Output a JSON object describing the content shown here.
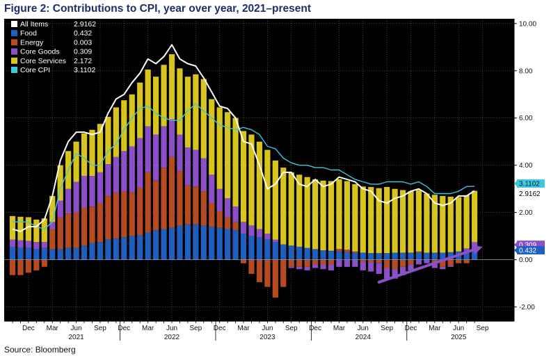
{
  "title": "Figure 2: Contributions to CPI, year over year, 2021–present",
  "source": "Source: Bloomberg",
  "chart_data": {
    "type": "bar",
    "stacked": true,
    "ylim": [
      -2.6,
      10.2
    ],
    "yticks": [
      "10.00",
      "8.00",
      "6.00",
      "4.00",
      "2.00",
      "0.00",
      "-2.00"
    ],
    "ytick_values": [
      10,
      8,
      6,
      4,
      2,
      0,
      -2
    ],
    "x_months": [
      "2020-10",
      "2020-11",
      "2020-12",
      "2021-01",
      "2021-02",
      "2021-03",
      "2021-04",
      "2021-05",
      "2021-06",
      "2021-07",
      "2021-08",
      "2021-09",
      "2021-10",
      "2021-11",
      "2021-12",
      "2022-01",
      "2022-02",
      "2022-03",
      "2022-04",
      "2022-05",
      "2022-06",
      "2022-07",
      "2022-08",
      "2022-09",
      "2022-10",
      "2022-11",
      "2022-12",
      "2023-01",
      "2023-02",
      "2023-03",
      "2023-04",
      "2023-05",
      "2023-06",
      "2023-07",
      "2023-08",
      "2023-09",
      "2023-10",
      "2023-11",
      "2023-12",
      "2024-01",
      "2024-02",
      "2024-03",
      "2024-04",
      "2024-05",
      "2024-06",
      "2024-07",
      "2024-08",
      "2024-09",
      "2024-10",
      "2024-11",
      "2024-12",
      "2025-01",
      "2025-02",
      "2025-03",
      "2025-04",
      "2025-05",
      "2025-06",
      "2025-07",
      "2025-08"
    ],
    "x_tick_labels": [
      {
        "label": "Dec",
        "index": 2
      },
      {
        "label": "Mar",
        "index": 5
      },
      {
        "label": "Jun",
        "index": 8
      },
      {
        "label": "Sep",
        "index": 11
      },
      {
        "label": "Dec",
        "index": 14
      },
      {
        "label": "Mar",
        "index": 17
      },
      {
        "label": "Jun",
        "index": 20
      },
      {
        "label": "Sep",
        "index": 23
      },
      {
        "label": "Dec",
        "index": 26
      },
      {
        "label": "Mar",
        "index": 29
      },
      {
        "label": "Jun",
        "index": 32
      },
      {
        "label": "Sep",
        "index": 35
      },
      {
        "label": "Dec",
        "index": 38
      },
      {
        "label": "Mar",
        "index": 41
      },
      {
        "label": "Jun",
        "index": 44
      },
      {
        "label": "Sep",
        "index": 47
      },
      {
        "label": "Dec",
        "index": 50
      },
      {
        "label": "Mar",
        "index": 53
      },
      {
        "label": "Jun",
        "index": 56
      },
      {
        "label": "Sep",
        "index": 59
      }
    ],
    "x_year_labels": [
      {
        "label": "2021",
        "index": 8
      },
      {
        "label": "2022",
        "index": 20
      },
      {
        "label": "2023",
        "index": 32
      },
      {
        "label": "2024",
        "index": 44
      },
      {
        "label": "2025",
        "index": 56
      }
    ],
    "series": [
      {
        "name": "Food",
        "color": "#1f5fbf",
        "values": [
          0.55,
          0.52,
          0.5,
          0.45,
          0.5,
          0.45,
          0.45,
          0.5,
          0.5,
          0.6,
          0.7,
          0.75,
          0.85,
          0.9,
          0.95,
          1.0,
          1.05,
          1.15,
          1.25,
          1.3,
          1.35,
          1.45,
          1.5,
          1.5,
          1.45,
          1.4,
          1.35,
          1.3,
          1.25,
          1.1,
          1.0,
          0.95,
          0.85,
          0.75,
          0.65,
          0.6,
          0.55,
          0.5,
          0.45,
          0.4,
          0.38,
          0.36,
          0.33,
          0.3,
          0.3,
          0.28,
          0.28,
          0.28,
          0.3,
          0.3,
          0.3,
          0.3,
          0.3,
          0.3,
          0.3,
          0.32,
          0.35,
          0.38,
          0.432
        ]
      },
      {
        "name": "Energy",
        "color": "#b64a20",
        "values": [
          -0.65,
          -0.65,
          -0.55,
          -0.45,
          -0.3,
          0.85,
          1.35,
          1.45,
          1.5,
          1.6,
          1.55,
          1.65,
          1.85,
          1.95,
          1.95,
          1.85,
          2.0,
          2.55,
          2.1,
          2.6,
          3.0,
          2.3,
          1.65,
          1.6,
          1.45,
          1.0,
          0.7,
          0.5,
          0.35,
          -0.15,
          -0.6,
          -0.95,
          -1.15,
          -1.6,
          -1.15,
          -0.3,
          -0.3,
          -0.3,
          -0.2,
          -0.2,
          -0.2,
          0.1,
          0.1,
          0.05,
          -0.1,
          -0.1,
          -0.15,
          -0.35,
          -0.4,
          -0.3,
          -0.2,
          0.05,
          0.0,
          -0.2,
          -0.3,
          -0.25,
          -0.15,
          -0.15,
          0.003
        ]
      },
      {
        "name": "Core Goods",
        "color": "#8b4fc8",
        "values": [
          0.3,
          0.3,
          0.3,
          0.3,
          0.25,
          0.3,
          0.7,
          1.05,
          1.3,
          1.35,
          1.3,
          1.3,
          1.35,
          1.5,
          1.7,
          1.95,
          2.1,
          1.95,
          1.95,
          1.75,
          1.6,
          1.55,
          1.6,
          1.55,
          1.4,
          1.2,
          0.95,
          0.8,
          0.65,
          0.5,
          0.45,
          0.35,
          0.25,
          0.1,
          0.0,
          -0.05,
          -0.1,
          -0.15,
          -0.15,
          -0.2,
          -0.25,
          -0.3,
          -0.3,
          -0.3,
          -0.35,
          -0.4,
          -0.45,
          -0.45,
          -0.4,
          -0.35,
          -0.25,
          -0.2,
          -0.15,
          -0.15,
          -0.1,
          -0.05,
          0.0,
          0.1,
          0.309
        ]
      },
      {
        "name": "Core Services",
        "color": "#d8c41e",
        "values": [
          1.0,
          1.0,
          1.0,
          0.95,
          1.0,
          1.1,
          1.5,
          1.6,
          1.7,
          1.8,
          1.95,
          2.05,
          2.0,
          2.1,
          2.15,
          2.2,
          2.35,
          2.4,
          2.45,
          2.6,
          2.75,
          2.8,
          3.0,
          3.2,
          3.35,
          3.2,
          3.45,
          3.65,
          3.75,
          3.85,
          3.85,
          3.7,
          3.55,
          3.35,
          3.25,
          3.1,
          3.05,
          3.0,
          2.95,
          2.95,
          2.95,
          2.95,
          2.9,
          2.85,
          2.8,
          2.8,
          2.75,
          2.8,
          2.7,
          2.65,
          2.6,
          2.6,
          2.5,
          2.45,
          2.4,
          2.35,
          2.3,
          2.25,
          2.172
        ]
      }
    ],
    "lines": [
      {
        "name": "All Items",
        "color": "#ffffff",
        "values": [
          1.3,
          1.2,
          1.4,
          1.4,
          1.7,
          2.7,
          4.2,
          5.0,
          5.4,
          5.4,
          5.3,
          5.4,
          6.2,
          6.8,
          7.0,
          7.5,
          7.9,
          8.5,
          8.3,
          8.6,
          9.1,
          8.5,
          8.3,
          8.2,
          7.7,
          7.1,
          6.5,
          6.4,
          6.0,
          5.0,
          4.9,
          4.0,
          3.0,
          3.2,
          3.7,
          3.7,
          3.2,
          3.1,
          3.4,
          3.1,
          3.2,
          3.5,
          3.4,
          3.3,
          3.0,
          2.9,
          2.5,
          2.4,
          2.6,
          2.7,
          2.9,
          3.0,
          2.8,
          2.4,
          2.3,
          2.4,
          2.7,
          2.7,
          2.9162
        ]
      },
      {
        "name": "Core CPI",
        "color": "#3ec7e0",
        "values": [
          1.6,
          1.6,
          1.6,
          1.4,
          1.3,
          1.6,
          3.0,
          3.8,
          4.5,
          4.3,
          4.0,
          4.0,
          4.6,
          4.9,
          5.5,
          6.0,
          6.4,
          6.5,
          6.2,
          6.0,
          5.9,
          5.9,
          6.3,
          6.6,
          6.3,
          6.0,
          5.7,
          5.6,
          5.5,
          5.6,
          5.5,
          5.3,
          4.8,
          4.7,
          4.3,
          4.1,
          4.0,
          4.0,
          3.9,
          3.9,
          3.8,
          3.8,
          3.6,
          3.4,
          3.3,
          3.2,
          3.2,
          3.3,
          3.3,
          3.3,
          3.2,
          3.3,
          3.1,
          2.8,
          2.8,
          2.8,
          2.9,
          3.1,
          3.1102
        ]
      }
    ],
    "legend": [
      {
        "name": "All Items",
        "value": "2.9162",
        "color": "#ffffff"
      },
      {
        "name": "Food",
        "value": "0.432",
        "color": "#1f5fbf"
      },
      {
        "name": "Energy",
        "value": "0.003",
        "color": "#b64a20"
      },
      {
        "name": "Core Goods",
        "value": "0.309",
        "color": "#8b4fc8"
      },
      {
        "name": "Core Services",
        "value": "2.172",
        "color": "#d8c41e"
      },
      {
        "name": "Core CPI",
        "value": "3.1102",
        "color": "#3ec7e0"
      }
    ],
    "legend_position": "top-left",
    "right_tags": [
      {
        "label": "3.1102",
        "value": 3.1102,
        "bg": "#3ec7e0",
        "fg": "#0a1a2a"
      },
      {
        "label": "2.9162",
        "value": 2.9162,
        "bg": "#ffffff",
        "fg": "#000000"
      },
      {
        "label": "0.309",
        "value": 0.309,
        "bg": "#8b4fc8",
        "fg": "#ffffff"
      },
      {
        "label": "0.432",
        "value": 0.432,
        "bg": "#1f5fbf",
        "fg": "#ffffff"
      }
    ],
    "arrow": {
      "from_index": 46,
      "from_value": -0.95,
      "to_index": 59,
      "to_value": 0.55,
      "color": "#8b4fc8"
    }
  }
}
